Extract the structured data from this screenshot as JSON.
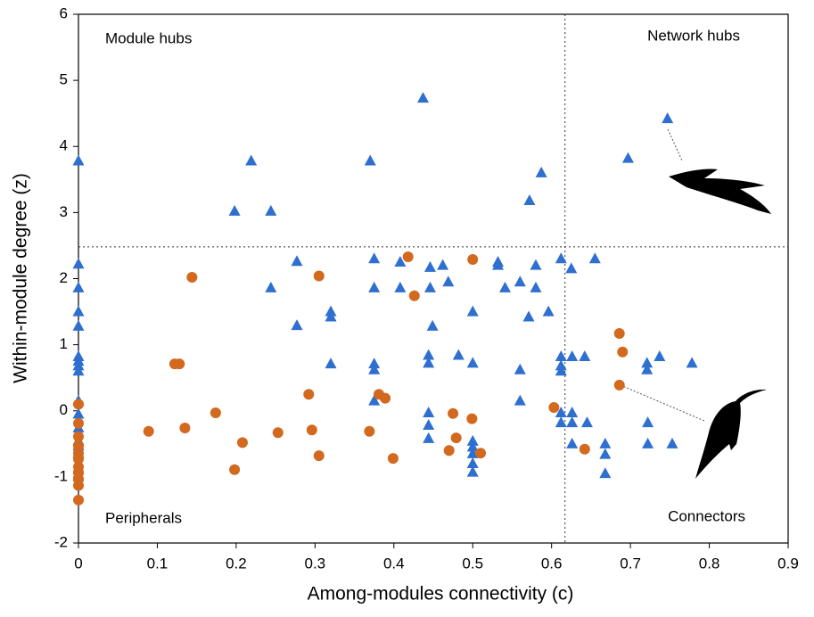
{
  "chart_data": {
    "type": "scatter",
    "x_label": "Among-modules connectivity (c)",
    "y_label": "Within-module degree (z)",
    "annotations": [
      "Module hubs",
      "Network hubs",
      "Peripherals",
      "Connectors"
    ],
    "xlim": [
      0,
      0.9
    ],
    "ylim": [
      -2,
      6
    ],
    "xticks": [
      0,
      0.1,
      0.2,
      0.3,
      0.4,
      0.5,
      0.6,
      0.7,
      0.8,
      0.9
    ],
    "yticks": [
      -2,
      -1,
      0,
      1,
      2,
      3,
      4,
      5,
      6
    ],
    "vline": 0.617,
    "hline": 2.48,
    "series": [
      {
        "color": "#2e6fd0",
        "marker": "triangle",
        "x": [
          0,
          0,
          0,
          0,
          0,
          0,
          0,
          0,
          0,
          0,
          0,
          0,
          0,
          0,
          0,
          0,
          0,
          0.198,
          0.219,
          0.244,
          0.244,
          0.277,
          0.277,
          0.32,
          0.32,
          0.32,
          0.37,
          0.437,
          0.375,
          0.375,
          0.375,
          0.375,
          0.375,
          0.408,
          0.408,
          0.446,
          0.446,
          0.449,
          0.444,
          0.444,
          0.444,
          0.444,
          0.444,
          0.469,
          0.482,
          0.462,
          0.5,
          0.5,
          0.5,
          0.5,
          0.5,
          0.5,
          0.5,
          0.532,
          0.532,
          0.541,
          0.56,
          0.56,
          0.56,
          0.572,
          0.587,
          0.571,
          0.58,
          0.58,
          0.596,
          0.612,
          0.612,
          0.612,
          0.612,
          0.612,
          0.612,
          0.625,
          0.626,
          0.626,
          0.626,
          0.626,
          0.642,
          0.645,
          0.655,
          0.668,
          0.668,
          0.668,
          0.697,
          0.747,
          0.721,
          0.721,
          0.722,
          0.722,
          0.737,
          0.753,
          0.778
        ],
        "values": [
          3.78,
          2.22,
          1.86,
          1.5,
          1.28,
          0.82,
          0.75,
          0.68,
          0.6,
          0.15,
          -0.05,
          -0.26,
          -0.45,
          -0.53,
          -0.64,
          -0.9,
          -1.0,
          3.02,
          3.78,
          3.02,
          1.86,
          2.26,
          1.29,
          1.5,
          1.42,
          0.71,
          3.78,
          4.73,
          2.3,
          1.86,
          0.71,
          0.62,
          0.15,
          2.25,
          1.86,
          2.17,
          1.86,
          1.28,
          0.84,
          0.72,
          -0.03,
          -0.22,
          -0.42,
          1.95,
          0.84,
          2.2,
          0.72,
          1.5,
          -0.46,
          -0.55,
          -0.65,
          -0.8,
          -0.93,
          2.25,
          2.2,
          1.86,
          1.95,
          0.62,
          0.15,
          3.18,
          3.6,
          1.42,
          2.2,
          1.86,
          1.5,
          2.3,
          0.82,
          0.68,
          0.6,
          -0.03,
          -0.18,
          2.15,
          0.82,
          -0.03,
          -0.18,
          -0.5,
          0.82,
          -0.18,
          2.3,
          -0.5,
          -0.66,
          -0.95,
          3.82,
          4.42,
          0.72,
          0.62,
          -0.18,
          -0.5,
          0.82,
          -0.5,
          0.72
        ]
      },
      {
        "color": "#d2691e",
        "marker": "circle",
        "x": [
          0,
          0,
          0,
          0,
          0,
          0,
          0,
          0,
          0,
          0,
          0,
          0.089,
          0.122,
          0.128,
          0.135,
          0.144,
          0.174,
          0.198,
          0.208,
          0.253,
          0.292,
          0.296,
          0.305,
          0.305,
          0.369,
          0.381,
          0.389,
          0.399,
          0.418,
          0.426,
          0.47,
          0.475,
          0.479,
          0.5,
          0.499,
          0.51,
          0.603,
          0.642,
          0.686,
          0.69,
          0.686
        ],
        "values": [
          0.1,
          -0.19,
          -0.39,
          -0.53,
          -0.64,
          -0.73,
          -0.85,
          -0.93,
          -1.03,
          -1.13,
          -1.35,
          -0.31,
          0.71,
          0.71,
          -0.26,
          2.02,
          -0.03,
          -0.89,
          -0.48,
          -0.33,
          0.25,
          -0.29,
          2.04,
          -0.68,
          -0.31,
          0.25,
          0.19,
          -0.72,
          2.33,
          1.74,
          -0.6,
          -0.04,
          -0.41,
          2.29,
          -0.12,
          -0.64,
          0.05,
          -0.58,
          1.17,
          0.89,
          0.39
        ]
      }
    ]
  }
}
